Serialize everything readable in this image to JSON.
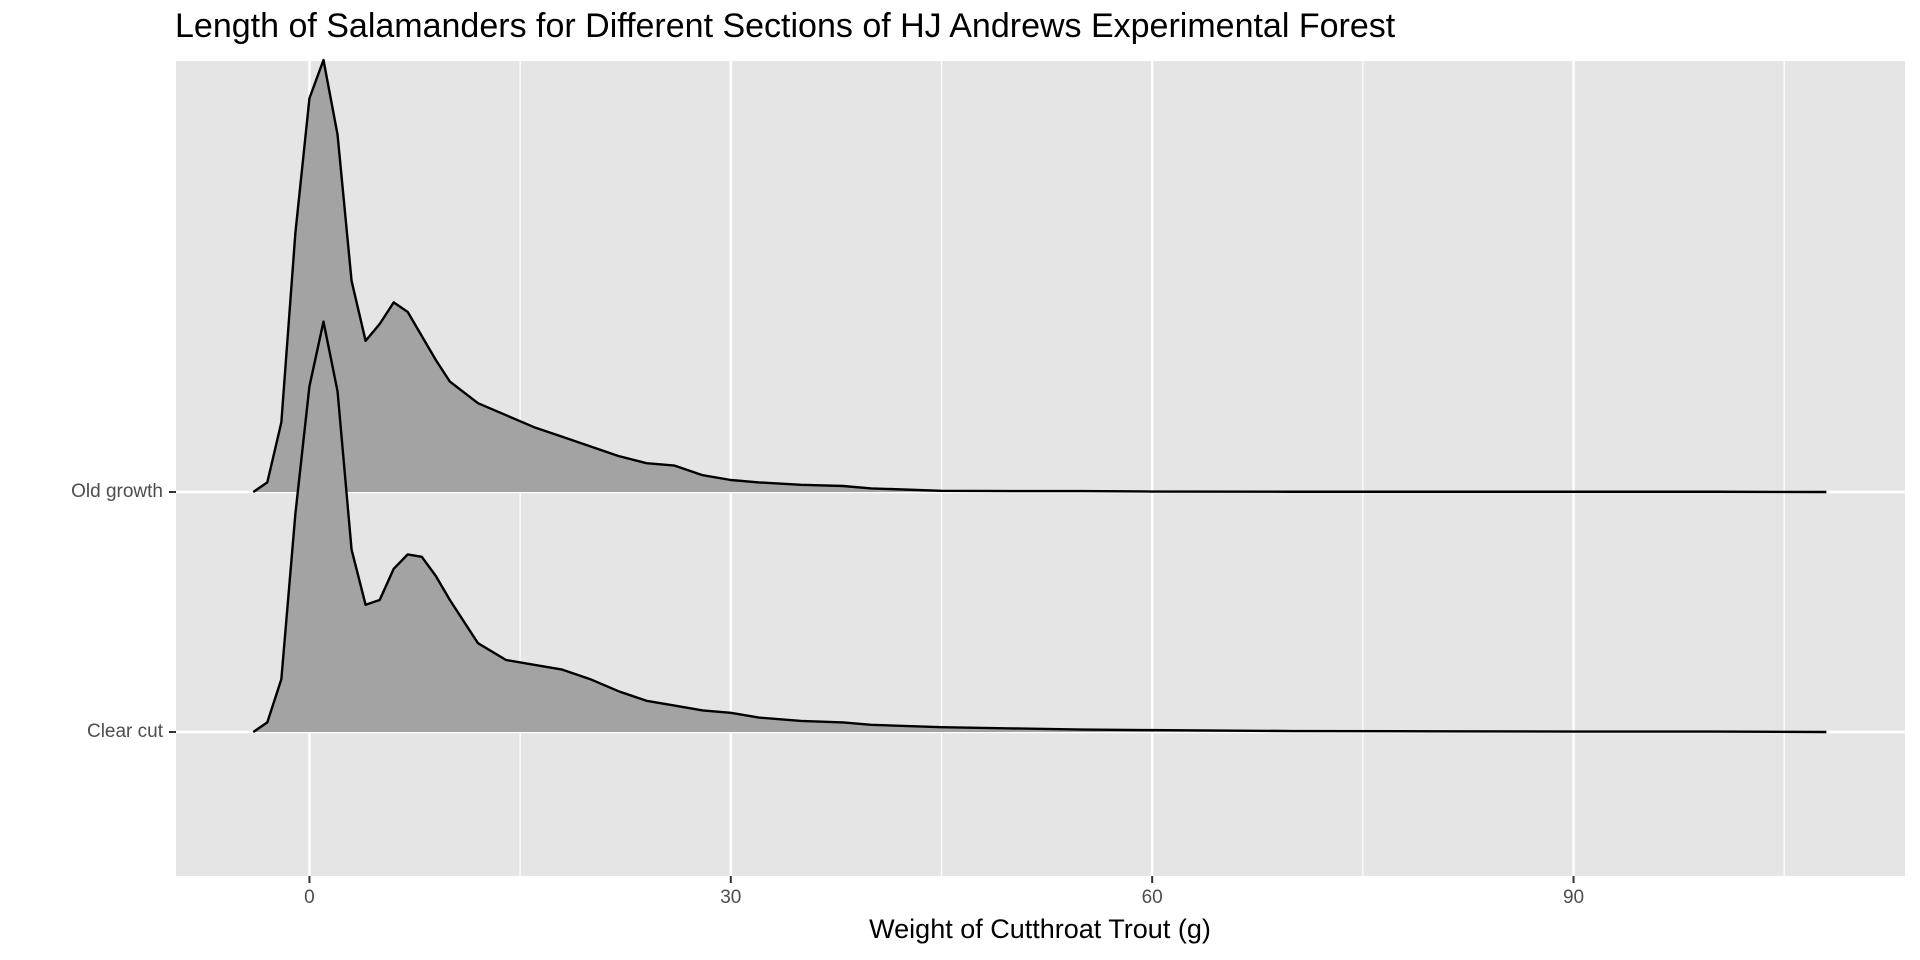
{
  "chart_data": {
    "type": "ridgeline",
    "title": "Length of Salamanders for Different Sections of HJ Andrews Experimental Forest",
    "x_label": "Weight of Cutthroat Trout (g)",
    "categories": [
      "Clear cut",
      "Old growth"
    ],
    "x": [
      -4,
      -3,
      -2,
      -1,
      0,
      1,
      2,
      3,
      4,
      5,
      6,
      7,
      8,
      9,
      10,
      12,
      14,
      16,
      18,
      20,
      22,
      24,
      26,
      28,
      30,
      32,
      35,
      38,
      40,
      45,
      50,
      55,
      60,
      70,
      80,
      90,
      100,
      108
    ],
    "series": [
      {
        "name": "Clear cut",
        "color": "#a3a3a3",
        "values": [
          0,
          0.04,
          0.22,
          0.91,
          1.44,
          1.71,
          1.42,
          0.76,
          0.53,
          0.55,
          0.68,
          0.74,
          0.73,
          0.65,
          0.55,
          0.37,
          0.3,
          0.28,
          0.26,
          0.22,
          0.17,
          0.13,
          0.11,
          0.09,
          0.08,
          0.06,
          0.046,
          0.04,
          0.03,
          0.02,
          0.015,
          0.01,
          0.008,
          0.004,
          0.003,
          0.002,
          0.002,
          0
        ]
      },
      {
        "name": "Old growth",
        "color": "#a3a3a3",
        "values": [
          0,
          0.04,
          0.29,
          1.08,
          1.64,
          1.8,
          1.49,
          0.88,
          0.63,
          0.7,
          0.79,
          0.75,
          0.65,
          0.55,
          0.46,
          0.37,
          0.32,
          0.27,
          0.23,
          0.19,
          0.15,
          0.12,
          0.11,
          0.07,
          0.05,
          0.04,
          0.03,
          0.025,
          0.015,
          0.005,
          0.004,
          0.004,
          0.002,
          0.001,
          0.001,
          0.001,
          0.001,
          0
        ]
      }
    ],
    "xlim": [
      -9.5,
      113.6
    ],
    "xticks": [
      0,
      30,
      60,
      90
    ],
    "grid": true
  }
}
